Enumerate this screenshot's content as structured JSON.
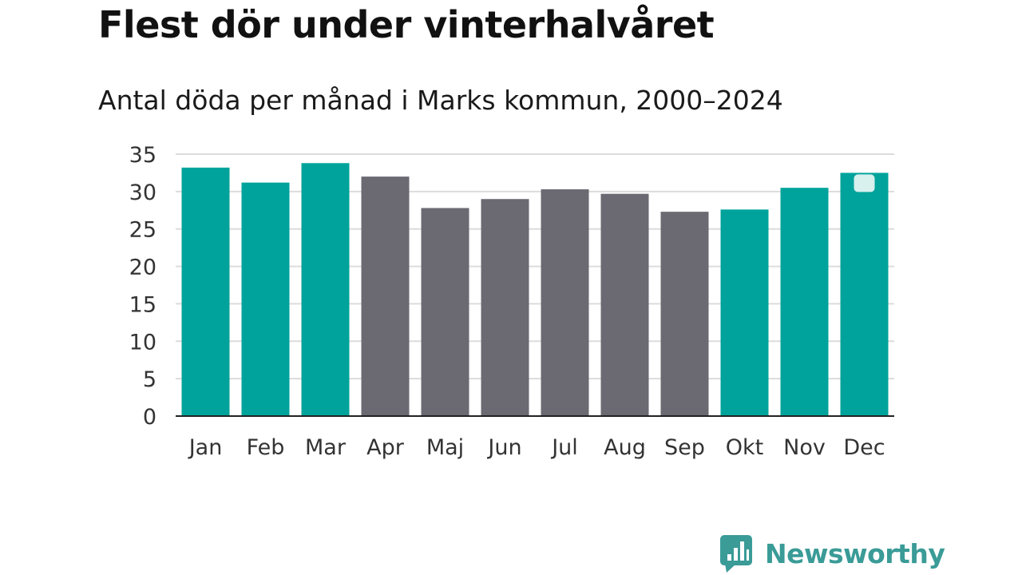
{
  "title": "Flest dör under vinterhalvåret",
  "subtitle": "Antal döda per månad i Marks kommun, 2000–2024",
  "brand": {
    "name": "Newsworthy",
    "icon": "newsworthy-logo-icon"
  },
  "colors": {
    "winter": "#00a39b",
    "summer": "#6b6a72",
    "grid": "#dcdcdc",
    "axis": "#222222",
    "brand": "#3a9b97"
  },
  "chart_data": {
    "type": "bar",
    "title": "Flest dör under vinterhalvåret",
    "subtitle": "Antal döda per månad i Marks kommun, 2000–2024",
    "categories": [
      "Jan",
      "Feb",
      "Mar",
      "Apr",
      "Maj",
      "Jun",
      "Jul",
      "Aug",
      "Sep",
      "Okt",
      "Nov",
      "Dec"
    ],
    "values": [
      33.2,
      31.2,
      33.8,
      32.0,
      27.8,
      29.0,
      30.3,
      29.7,
      27.3,
      27.6,
      30.5,
      32.5
    ],
    "season": [
      "winter",
      "winter",
      "winter",
      "summer",
      "summer",
      "summer",
      "summer",
      "summer",
      "summer",
      "winter",
      "winter",
      "winter"
    ],
    "yticks": [
      0,
      5,
      10,
      15,
      20,
      25,
      30,
      35
    ],
    "ylim": [
      0,
      35
    ],
    "xlabel": "",
    "ylabel": "",
    "grid": true,
    "legend": "none"
  }
}
